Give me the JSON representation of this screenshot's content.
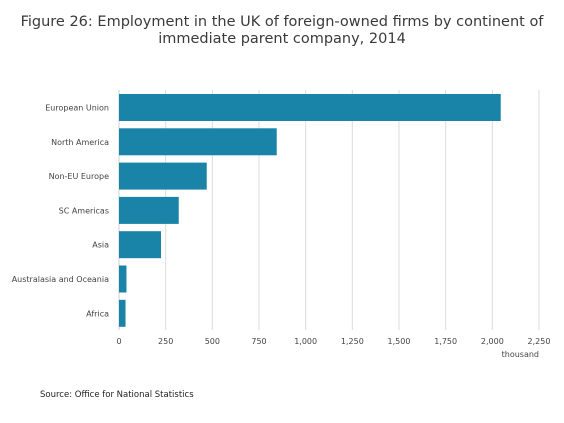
{
  "title_lines": [
    "Figure 26: Employment in the UK of foreign-owned firms by continent of",
    "immediate parent company, 2014"
  ],
  "source": "Source: Office for National Statistics",
  "colors": {
    "bar": "#1a84a8",
    "grid": "#dcdcdc",
    "text": "#444444"
  },
  "chart_data": {
    "type": "bar",
    "orientation": "horizontal",
    "categories": [
      "European Union",
      "North America",
      "Non-EU Europe",
      "SC Americas",
      "Asia",
      "Australasia and Oceania",
      "Africa"
    ],
    "values": [
      2045,
      845,
      470,
      320,
      225,
      40,
      35
    ],
    "xlim": [
      0,
      2250
    ],
    "xticks": [
      0,
      250,
      500,
      750,
      1000,
      1250,
      1500,
      1750,
      2000,
      2250
    ],
    "xtick_labels": [
      "0",
      "250",
      "500",
      "750",
      "1,000",
      "1,250",
      "1,500",
      "1,750",
      "2,000",
      "2,250"
    ],
    "xlabel": "thousand",
    "ylabel": "",
    "grid": "vertical",
    "legend": "none"
  }
}
